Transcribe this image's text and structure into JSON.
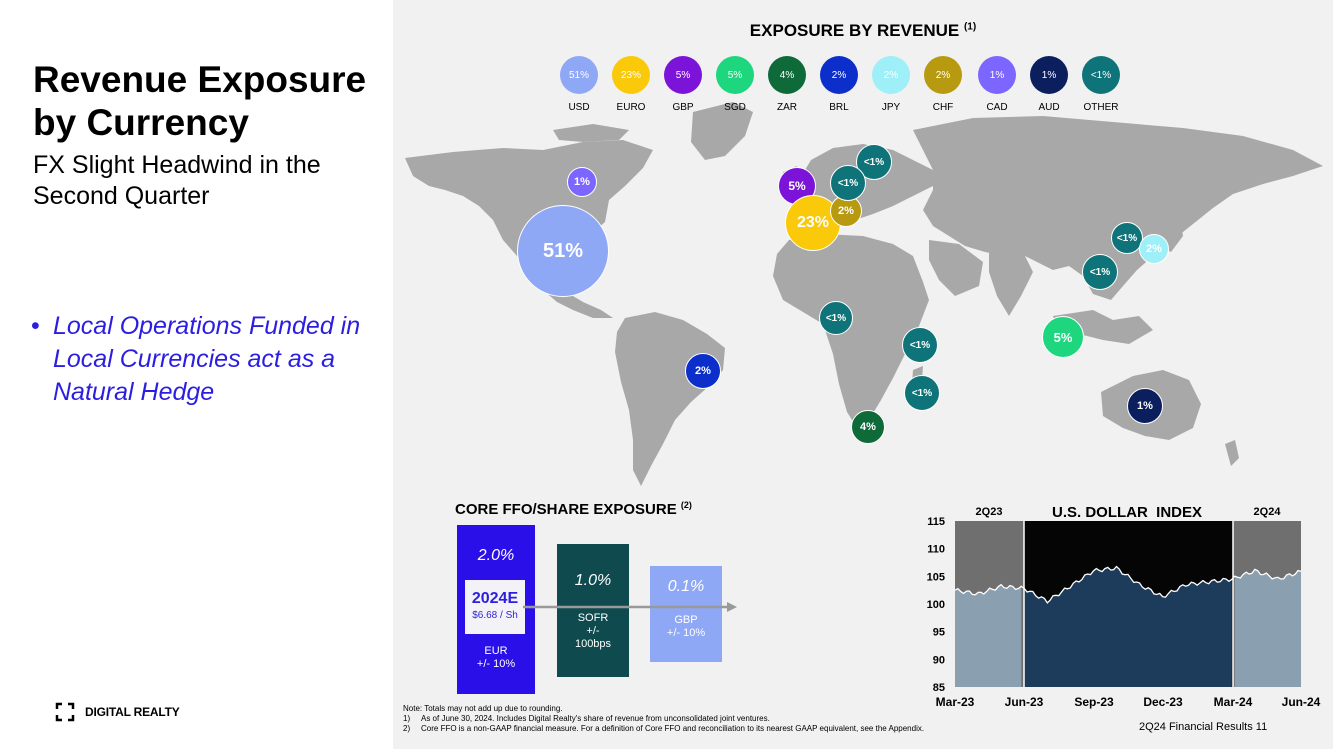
{
  "left": {
    "title": "Revenue Exposure by Currency",
    "subtitle": "FX Slight Headwind in the Second Quarter",
    "bullet_marker": "•",
    "bullet": "Local Operations Funded in Local Currencies act as a Natural Hedge",
    "logo_text": "DIGITAL REALTY"
  },
  "exposure": {
    "title": "EXPOSURE BY REVENUE",
    "title_note": "(1)",
    "legend": [
      {
        "pct": "51%",
        "label": "USD",
        "color": "#8fa8f5"
      },
      {
        "pct": "23%",
        "label": "EURO",
        "color": "#f9c90a"
      },
      {
        "pct": "5%",
        "label": "GBP",
        "color": "#7c13d8"
      },
      {
        "pct": "5%",
        "label": "SGD",
        "color": "#1ed67e"
      },
      {
        "pct": "4%",
        "label": "ZAR",
        "color": "#0f6a3a"
      },
      {
        "pct": "2%",
        "label": "BRL",
        "color": "#0c2fcc"
      },
      {
        "pct": "2%",
        "label": "JPY",
        "color": "#9eeff7"
      },
      {
        "pct": "2%",
        "label": "CHF",
        "color": "#b89a10"
      },
      {
        "pct": "1%",
        "label": "CAD",
        "color": "#7b67ff"
      },
      {
        "pct": "1%",
        "label": "AUD",
        "color": "#0b1f5e"
      },
      {
        "pct": "<1%",
        "label": "OTHER",
        "color": "#0f7479"
      }
    ],
    "bubbles": [
      {
        "pct": "51%",
        "color": "#8fa8f5"
      },
      {
        "pct": "1%",
        "color": "#7b67ff"
      },
      {
        "pct": "5%",
        "color": "#7c13d8"
      },
      {
        "pct": "23%",
        "color": "#f9c90a"
      },
      {
        "pct": "2%",
        "color": "#b89a10"
      },
      {
        "pct": "<1%",
        "color": "#0f7479"
      },
      {
        "pct": "<1%",
        "color": "#0f7479"
      },
      {
        "pct": "<1%",
        "color": "#0f7479"
      },
      {
        "pct": "2%",
        "color": "#9eeff7"
      },
      {
        "pct": "<1%",
        "color": "#0f7479"
      },
      {
        "pct": "5%",
        "color": "#1ed67e"
      },
      {
        "pct": "<1%",
        "color": "#0f7479"
      },
      {
        "pct": "<1%",
        "color": "#0f7479"
      },
      {
        "pct": "<1%",
        "color": "#0f7479"
      },
      {
        "pct": "2%",
        "color": "#0c2fcc"
      },
      {
        "pct": "4%",
        "color": "#0f6a3a"
      },
      {
        "pct": "1%",
        "color": "#0b1f5e"
      }
    ]
  },
  "ffo": {
    "title": "CORE FFO/SHARE EXPOSURE",
    "title_note": "(2)",
    "eur": {
      "pct": "2.0%",
      "label": "EUR",
      "range": "+/- 10%",
      "color": "#2b0fe8"
    },
    "estimate": {
      "title": "2024E",
      "value": "$6.68 / Sh"
    },
    "sofr": {
      "pct": "1.0%",
      "label": "SOFR",
      "range": "+/-",
      "range2": "100bps",
      "color": "#0e4a4e"
    },
    "gbp": {
      "pct": "0.1%",
      "label": "GBP",
      "range": "+/- 10%",
      "color": "#8fa8f5"
    }
  },
  "chart_data": {
    "type": "line",
    "title": "U.S. DOLLAR  INDEX",
    "period_labels": [
      "2Q23",
      "2Q24"
    ],
    "ylim": [
      85,
      115
    ],
    "yticks": [
      115,
      110,
      105,
      100,
      95,
      90,
      85
    ],
    "xticks": [
      "Mar-23",
      "Jun-23",
      "Sep-23",
      "Dec-23",
      "Mar-24",
      "Jun-24"
    ],
    "series": [
      {
        "name": "U.S. Dollar Index",
        "x": [
          "Mar-23",
          "Apr-23",
          "May-23",
          "Jun-23",
          "Jul-23",
          "Aug-23",
          "Sep-23",
          "Oct-23",
          "Nov-23",
          "Dec-23",
          "Jan-24",
          "Feb-24",
          "Mar-24",
          "Apr-24",
          "May-24",
          "Jun-24"
        ],
        "values": [
          102.5,
          101.8,
          103.2,
          102.8,
          100.5,
          103.2,
          106.0,
          106.5,
          103.5,
          101.3,
          103.5,
          104.0,
          104.5,
          106.0,
          104.5,
          105.9
        ]
      }
    ]
  },
  "notes": {
    "line0": "Note:  Totals may not add up due to rounding.",
    "n1": "1)",
    "line1": "As of June 30, 2024.  Includes Digital Realty's share of revenue from unconsolidated joint ventures.",
    "n2": "2)",
    "line2": "Core FFO is a non-GAAP financial measure.  For a definition of Core FFO and reconciliation to its nearest GAAP equivalent, see the Appendix."
  },
  "footer": "2Q24 Financial Results 11"
}
